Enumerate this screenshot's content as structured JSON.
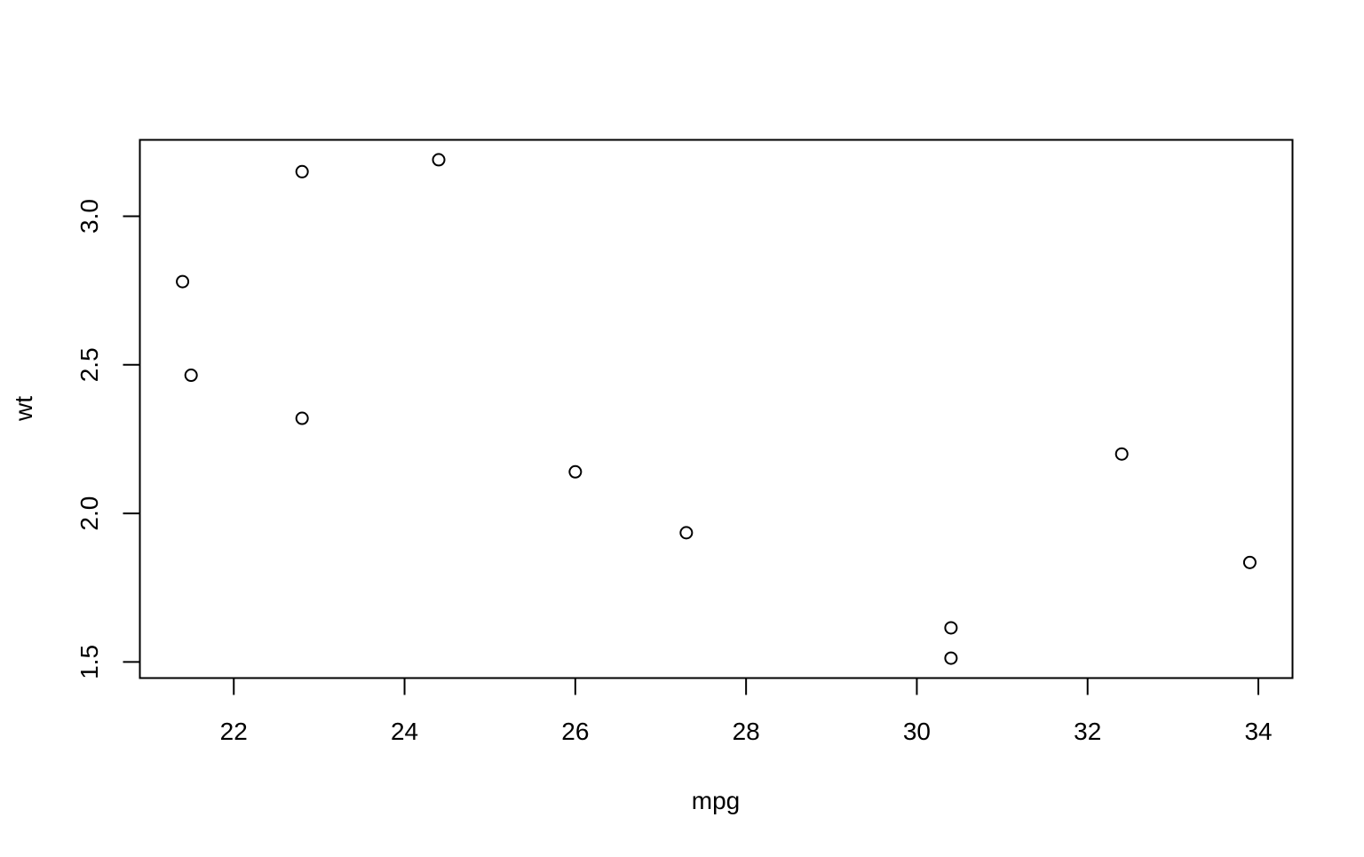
{
  "chart_data": {
    "type": "scatter",
    "title": "",
    "xlabel": "mpg",
    "ylabel": "wt",
    "xlim": [
      20.9,
      34.4
    ],
    "ylim": [
      1.446,
      3.257
    ],
    "xticks": [
      "22",
      "24",
      "26",
      "28",
      "30",
      "32",
      "34"
    ],
    "yticks": [
      "1.5",
      "2.0",
      "2.5",
      "3.0"
    ],
    "grid": false,
    "marker": "open-circle",
    "points": [
      {
        "x": 21.4,
        "y": 2.78
      },
      {
        "x": 21.5,
        "y": 2.465
      },
      {
        "x": 22.8,
        "y": 3.15
      },
      {
        "x": 22.8,
        "y": 2.32
      },
      {
        "x": 24.4,
        "y": 3.19
      },
      {
        "x": 26.0,
        "y": 2.14
      },
      {
        "x": 27.3,
        "y": 1.935
      },
      {
        "x": 30.4,
        "y": 1.615
      },
      {
        "x": 30.4,
        "y": 1.513
      },
      {
        "x": 32.4,
        "y": 2.2
      },
      {
        "x": 33.9,
        "y": 1.835
      }
    ]
  }
}
